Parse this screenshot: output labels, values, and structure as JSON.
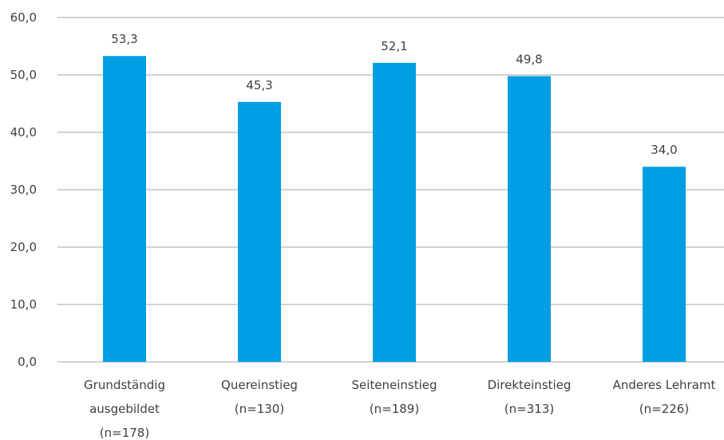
{
  "chart_data": {
    "type": "bar",
    "categories": [
      [
        "Grundständig",
        "ausgebildet",
        "(n=178)"
      ],
      [
        "Quereinstieg",
        "(n=130)"
      ],
      [
        "Seiteneinstieg",
        "(n=189)"
      ],
      [
        "Direkteinstieg",
        "(n=313)"
      ],
      [
        "Anderes Lehramt",
        "(n=226)"
      ]
    ],
    "values": [
      53.3,
      45.3,
      52.1,
      49.8,
      34.0
    ],
    "value_labels": [
      "53,3",
      "45,3",
      "52,1",
      "49,8",
      "34,0"
    ],
    "y_ticks": [
      0,
      10,
      20,
      30,
      40,
      50,
      60
    ],
    "y_tick_labels": [
      "0,0",
      "10,0",
      "20,0",
      "30,0",
      "40,0",
      "50,0",
      "60,0"
    ],
    "ylim": [
      0,
      60
    ],
    "grid": true,
    "legend": "none",
    "colors": {
      "bar": "#009fe3"
    }
  }
}
